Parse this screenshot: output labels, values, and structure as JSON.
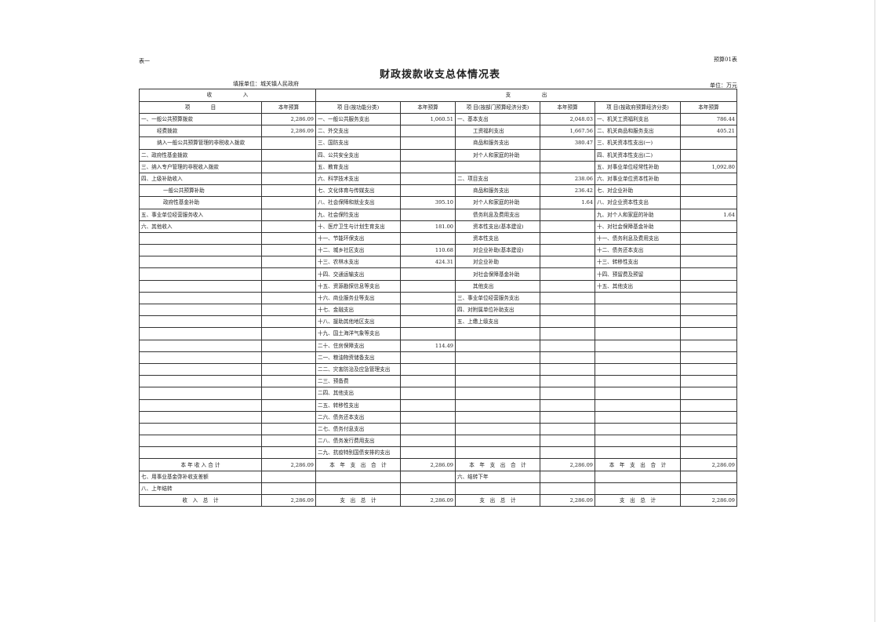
{
  "header": {
    "table_no": "表一",
    "form_code": "预算01表",
    "title": "财政拨款收支总体情况表",
    "filing_unit": "填报单位：城关镇人民政府",
    "unit": "单位：万元"
  },
  "columns": {
    "income_group": "收　　　　　　入",
    "expense_group": "支　　　　　　出",
    "income_item": "项　　　　目",
    "budget": "本年预算",
    "func_item": "项 目(按功能分类)",
    "dept_item": "项 目(按部门预算经济分类)",
    "gov_item": "项 目(按政府预算经济分类)"
  },
  "rows": [
    [
      "一、一般公共预算拨款",
      "2,286.09",
      "一、一般公共服务支出",
      "1,060.51",
      "一、基本支出",
      "2,048.03",
      "一、机关工资福利支出",
      "786.44"
    ],
    [
      "经费拨款",
      "2,286.09",
      "二、外交支出",
      "",
      "工资福利支出",
      "1,667.56",
      "二、机关商品和服务支出",
      "405.21"
    ],
    [
      "纳入一般公共预算管理的非税收入拨款",
      "",
      "三、国防支出",
      "",
      "商品和服务支出",
      "380.47",
      "三、机关资本性支出(一)",
      ""
    ],
    [
      "二、政府性基金拨款",
      "",
      "四、公共安全支出",
      "",
      "对个人和家庭的补助",
      "",
      "四、机关资本性支出(二)",
      ""
    ],
    [
      "三、纳入专户管理的非税收入拨款",
      "",
      "五、教育支出",
      "",
      "",
      "",
      "五、对事业单位经常性补助",
      "1,092.80"
    ],
    [
      "四、上级补助收入",
      "",
      "六、科学技术支出",
      "",
      "二、项目支出",
      "238.06",
      "六、对事业单位资本性补助",
      ""
    ],
    [
      "一般公共预算补助",
      "",
      "七、文化体育与传媒支出",
      "",
      "商品和服务支出",
      "236.42",
      "七、对企业补助",
      ""
    ],
    [
      "政府性基金补助",
      "",
      "八、社会保障和就业支出",
      "395.10",
      "对个人和家庭的补助",
      "1.64",
      "八、对企业资本性支出",
      ""
    ],
    [
      "五、事业单位经营服务收入",
      "",
      "九、社会保险支出",
      "",
      "债务利息及费用支出",
      "",
      "九、对个人和家庭的补助",
      "1.64"
    ],
    [
      "六、其他收入",
      "",
      "十、医疗卫生与计划生育支出",
      "181.00",
      "资本性支出(基本建设)",
      "",
      "十、对社会保障基金补助",
      ""
    ],
    [
      "",
      "",
      "十一、节能环保支出",
      "",
      "资本性支出",
      "",
      "十一、债务利息及费用支出",
      ""
    ],
    [
      "",
      "",
      "十二、城乡社区支出",
      "110.68",
      "对企业补助(基本建设)",
      "",
      "十二、债务还本支出",
      ""
    ],
    [
      "",
      "",
      "十三、农林水支出",
      "424.31",
      "对企业补助",
      "",
      "十三、转移性支出",
      ""
    ],
    [
      "",
      "",
      "十四、交通运输支出",
      "",
      "对社会保障基金补助",
      "",
      "十四、预留费及预留",
      ""
    ],
    [
      "",
      "",
      "十五、资源勘探信息等支出",
      "",
      "其他支出",
      "",
      "十五、其他支出",
      ""
    ],
    [
      "",
      "",
      "十六、商业服务业等支出",
      "",
      "三、事业单位经营服务支出",
      "",
      "",
      ""
    ],
    [
      "",
      "",
      "十七、金融支出",
      "",
      "四、对附属单位补助支出",
      "",
      "",
      ""
    ],
    [
      "",
      "",
      "十八、援助其他地区支出",
      "",
      "五、上缴上级支出",
      "",
      "",
      ""
    ],
    [
      "",
      "",
      "十九、国土海洋气象等支出",
      "",
      "",
      "",
      "",
      ""
    ],
    [
      "",
      "",
      "二十、住房保障支出",
      "114.49",
      "",
      "",
      "",
      ""
    ],
    [
      "",
      "",
      "二一、粮油物资储备支出",
      "",
      "",
      "",
      "",
      ""
    ],
    [
      "",
      "",
      "二二、灾害防治及应急管理支出",
      "",
      "",
      "",
      "",
      ""
    ],
    [
      "",
      "",
      "二三、预备费",
      "",
      "",
      "",
      "",
      ""
    ],
    [
      "",
      "",
      "二四、其他支出",
      "",
      "",
      "",
      "",
      ""
    ],
    [
      "",
      "",
      "二五、转移性支出",
      "",
      "",
      "",
      "",
      ""
    ],
    [
      "",
      "",
      "二六、债务还本支出",
      "",
      "",
      "",
      "",
      ""
    ],
    [
      "",
      "",
      "二七、债务付息支出",
      "",
      "",
      "",
      "",
      ""
    ],
    [
      "",
      "",
      "二八、债务发行费用支出",
      "",
      "",
      "",
      "",
      ""
    ],
    [
      "",
      "",
      "二九、抗疫特别国债安排的支出",
      "",
      "",
      "",
      "",
      ""
    ]
  ],
  "totals": [
    [
      "本 年 收 入 合 计",
      "2,286.09",
      "本　年　支　出　合　计",
      "2,286.09",
      "本　年　支　出　合　计",
      "2,286.09",
      "本　年　支　出　合　计",
      "2,286.09"
    ],
    [
      "七、用事业基金弥补收支差额",
      "",
      "",
      "",
      "六、结转下年",
      "",
      "",
      ""
    ],
    [
      "八、上年结转",
      "",
      "",
      "",
      "",
      "",
      "",
      ""
    ],
    [
      "收　入　总　计",
      "2,286.09",
      "支　出　总　计",
      "2,286.09",
      "支　出　总　计",
      "2,286.09",
      "支　出　总　计",
      "2,286.09"
    ]
  ]
}
